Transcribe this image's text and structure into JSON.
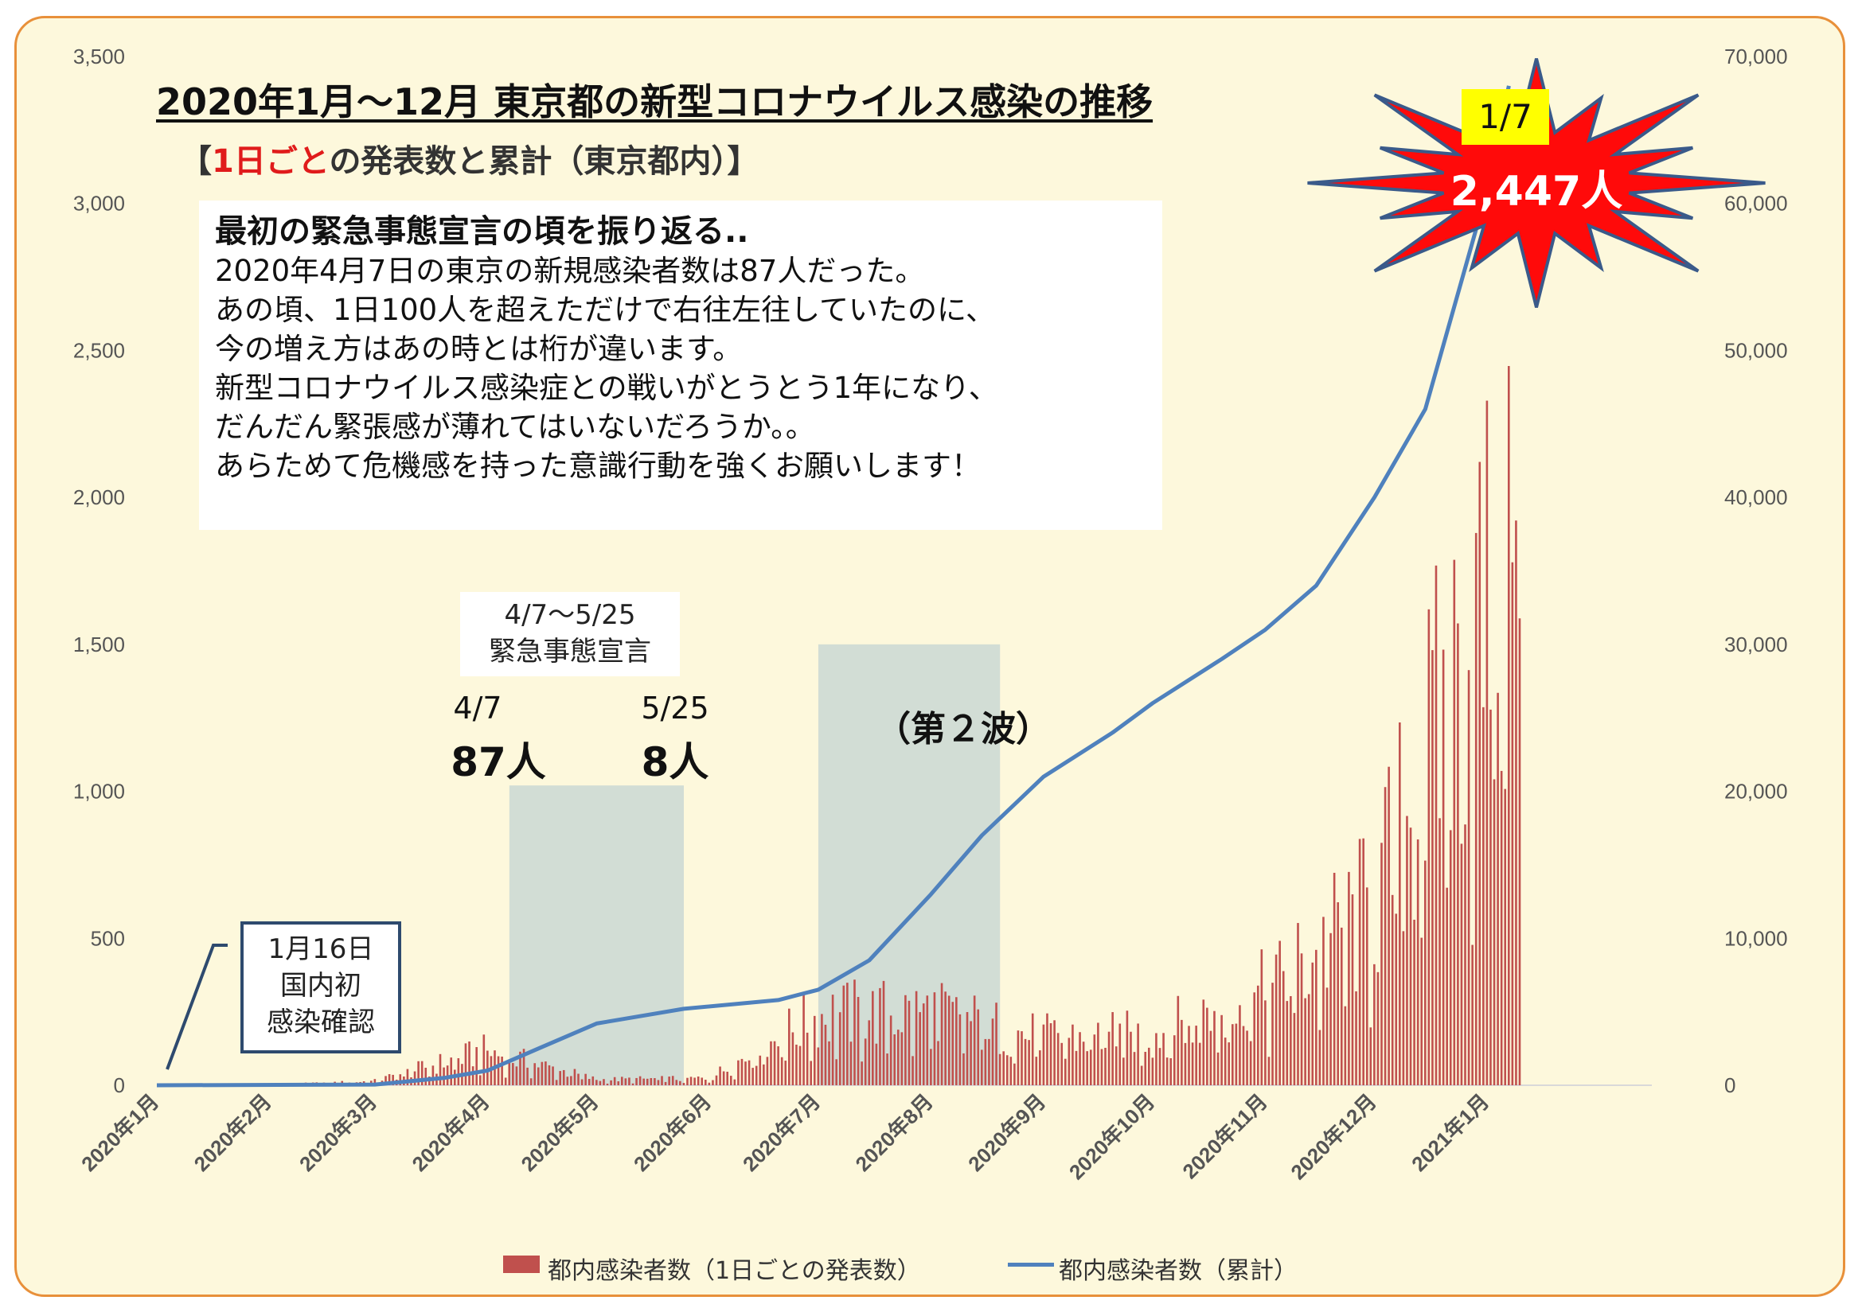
{
  "title": "2020年1月～12月 東京都の新型コロナウイルス感染の推移",
  "subtitle_bracket_open": "【",
  "subtitle_red": "1日ごと",
  "subtitle_rest": "の発表数と累計（東京都内）】",
  "note": {
    "heading": "最初の緊急事態宣言の頃を振り返る..",
    "lines": [
      "2020年4月7日の東京の新規感染者数は87人だった。",
      "あの頃、1日100人を超えただけで右往左往していたのに、",
      "今の増え方はあの時とは桁が違います。",
      "新型コロナウイルス感染症との戦いがとうとう1年になり、",
      "だんだん緊張感が薄れてはいないだろうか。。",
      "あらためて危機感を持った意識行動を強くお願いします！"
    ]
  },
  "emergency": {
    "range": "4/7～5/25",
    "label": "緊急事態宣言"
  },
  "day_start": {
    "date": "4/7",
    "value": "87人"
  },
  "day_end": {
    "date": "5/25",
    "value": "8人"
  },
  "second_wave": "（第２波）",
  "first_case": {
    "line1": "1月16日",
    "line2": "国内初",
    "line3": "感染確認"
  },
  "peak": {
    "date": "1/7",
    "value": "2,447人"
  },
  "colors": {
    "bars": "#c0504d",
    "line": "#4f81bd",
    "shade": "#aec7d0",
    "frame": "#e8903a",
    "background": "#fdf8dc",
    "burst": "#ff0a0a"
  },
  "chart_data": {
    "type": "bar",
    "combo_with": "line",
    "x_tick_labels": [
      "2020年1月",
      "2020年2月",
      "2020年3月",
      "2020年4月",
      "2020年5月",
      "2020年6月",
      "2020年7月",
      "2020年8月",
      "2020年9月",
      "2020年10月",
      "2020年11月",
      "2020年12月",
      "2021年1月"
    ],
    "y_left": {
      "ticks": [
        "0",
        "500",
        "1,000",
        "1,500",
        "2,000",
        "2,500",
        "3,000",
        "3,500"
      ],
      "ylim": [
        0,
        3500
      ]
    },
    "y_right": {
      "ticks": [
        "0",
        "10,000",
        "20,000",
        "30,000",
        "40,000",
        "50,000",
        "60,000",
        "70,000"
      ],
      "ylim": [
        0,
        70000
      ]
    },
    "shaded_periods": [
      [
        "2020-04-07",
        "2020-05-25"
      ],
      [
        "2020-07-01",
        "2020-08-20"
      ]
    ],
    "series": [
      {
        "name": "都内感染者数（1日ごとの発表数）",
        "kind": "bar",
        "axis": "left",
        "monthly_daily_level": [
          [
            "2020-01",
            1
          ],
          [
            "2020-02",
            2
          ],
          [
            "2020-03",
            15
          ],
          [
            "2020-04",
            120
          ],
          [
            "2020-05",
            20
          ],
          [
            "2020-06",
            25
          ],
          [
            "2020-07",
            250
          ],
          [
            "2020-08",
            260
          ],
          [
            "2020-09",
            170
          ],
          [
            "2020-10",
            180
          ],
          [
            "2020-11",
            320
          ],
          [
            "2020-12",
            640
          ],
          [
            "2021-01",
            1700
          ]
        ],
        "labeled_points": [
          [
            "2020-04-07",
            87
          ],
          [
            "2020-05-25",
            8
          ],
          [
            "2021-01-07",
            2447
          ]
        ]
      },
      {
        "name": "都内感染者数（累計）",
        "kind": "line",
        "axis": "right",
        "points": [
          [
            "2020-01-01",
            0
          ],
          [
            "2020-03-01",
            50
          ],
          [
            "2020-03-20",
            500
          ],
          [
            "2020-04-01",
            1000
          ],
          [
            "2020-04-15",
            2500
          ],
          [
            "2020-05-01",
            4200
          ],
          [
            "2020-05-25",
            5200
          ],
          [
            "2020-06-20",
            5800
          ],
          [
            "2020-07-01",
            6500
          ],
          [
            "2020-07-15",
            8500
          ],
          [
            "2020-08-01",
            13000
          ],
          [
            "2020-08-15",
            17000
          ],
          [
            "2020-09-01",
            21000
          ],
          [
            "2020-09-20",
            24000
          ],
          [
            "2020-10-01",
            26000
          ],
          [
            "2020-10-20",
            29000
          ],
          [
            "2020-11-01",
            31000
          ],
          [
            "2020-11-15",
            34000
          ],
          [
            "2020-12-01",
            40000
          ],
          [
            "2020-12-15",
            46000
          ],
          [
            "2020-12-31",
            60000
          ],
          [
            "2021-01-07",
            68000
          ]
        ]
      }
    ]
  }
}
